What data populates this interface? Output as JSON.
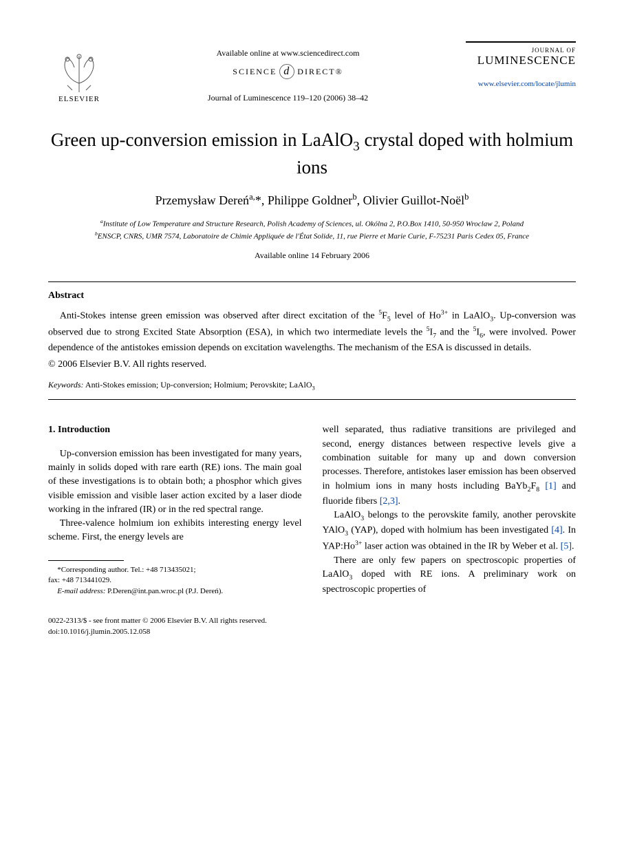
{
  "header": {
    "elsevier": "ELSEVIER",
    "available_online": "Available online at www.sciencedirect.com",
    "science_direct_left": "SCIENCE",
    "science_direct_right": "DIRECT®",
    "journal_ref": "Journal of Luminescence 119–120 (2006) 38–42",
    "journal_of": "JOURNAL OF",
    "journal_name": "LUMINESCENCE",
    "journal_url": "www.elsevier.com/locate/jlumin"
  },
  "title_line1": "Green up-conversion emission in LaAlO",
  "title_sub": "3",
  "title_line2": " crystal doped with holmium ions",
  "authors_html": "Przemysław Dereń<sup>a,</sup>*, Philippe Goldner<sup>b</sup>, Olivier Guillot-Noël<sup>b</sup>",
  "affiliations": {
    "a": "Institute of Low Temperature and Structure Research, Polish Academy of Sciences, ul. Okólna 2, P.O.Box 1410, 50-950 Wroclaw 2, Poland",
    "b": "ENSCP, CNRS, UMR 7574, Laboratoire de Chimie Appliquée de l'État Solide, 11, rue Pierre et Marie Curie, F-75231 Paris Cedex 05, France"
  },
  "available_date": "Available online 14 February 2006",
  "abstract": {
    "heading": "Abstract",
    "body_html": "Anti-Stokes intense green emission was observed after direct excitation of the <sup>5</sup>F<sub>5</sub> level of Ho<sup>3+</sup> in LaAlO<sub>3</sub>. Up-conversion was observed due to strong Excited State Absorption (ESA), in which two intermediate levels the <sup>5</sup>I<sub>7</sub> and the <sup>5</sup>I<sub>6</sub>, were involved. Power dependence of the antistokes emission depends on excitation wavelengths. The mechanism of the ESA is discussed in details.",
    "copyright": "© 2006 Elsevier B.V. All rights reserved."
  },
  "keywords": {
    "label": "Keywords:",
    "text": " Anti-Stokes emission; Up-conversion; Holmium; Perovskite; LaAlO",
    "sub": "3"
  },
  "section1": {
    "heading": "1. Introduction",
    "left_p1": "Up-conversion emission has been investigated for many years, mainly in solids doped with rare earth (RE) ions. The main goal of these investigations is to obtain both; a phosphor which gives visible emission and visible laser action excited by a laser diode working in the infrared (IR) or in the red spectral range.",
    "left_p2": "Three-valence holmium ion exhibits interesting energy level scheme. First, the energy levels are",
    "right_p1_html": "well separated, thus radiative transitions are privileged and second, energy distances between respective levels give a combination suitable for many up and down conversion processes. Therefore, antistokes laser emission has been observed in holmium ions in many hosts including BaYb<sub>2</sub>F<sub>8</sub> <span class=\"ref-link\">[1]</span> and fluoride fibers <span class=\"ref-link\">[2,3]</span>.",
    "right_p2_html": "LaAlO<sub>3</sub> belongs to the perovskite family, another perovskite YAlO<sub>3</sub> (YAP), doped with holmium has been investigated <span class=\"ref-link\">[4]</span>. In YAP:Ho<sup>3+</sup> laser action was obtained in the IR by Weber et al. <span class=\"ref-link\">[5]</span>.",
    "right_p3_html": "There are only few papers on spectroscopic properties of LaAlO<sub>3</sub> doped with RE ions. A preliminary work on spectroscopic properties of"
  },
  "footnote": {
    "corr": "*Corresponding author. Tel.: +48 713435021;",
    "fax": "fax: +48 713441029.",
    "email_label": "E-mail address:",
    "email": " P.Deren@int.pan.wroc.pl (P.J. Dereń)."
  },
  "footer": {
    "line1": "0022-2313/$ - see front matter © 2006 Elsevier B.V. All rights reserved.",
    "line2": "doi:10.1016/j.jlumin.2005.12.058"
  }
}
